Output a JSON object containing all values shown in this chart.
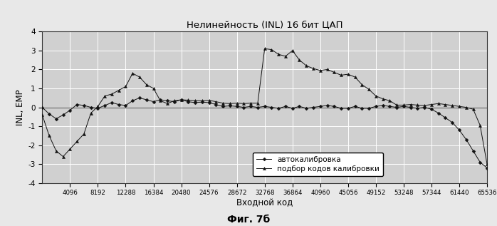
{
  "title": "Нелинейность (INL) 16 бит ЦАП",
  "xlabel": "Входной код",
  "ylabel": "INL, ЕМР",
  "figcaption": "Фиг. 7б",
  "xlim": [
    0,
    65536
  ],
  "ylim": [
    -4,
    4
  ],
  "yticks": [
    -4,
    -3,
    -2,
    -1,
    0,
    1,
    2,
    3,
    4
  ],
  "xticks": [
    4096,
    8192,
    12288,
    16384,
    20480,
    24576,
    28672,
    32768,
    36864,
    40960,
    45056,
    49152,
    53248,
    57344,
    61440,
    65536
  ],
  "xtick_labels": [
    "4096",
    "8192",
    "12288",
    "16384",
    "20480",
    "24576",
    "28672",
    "32768",
    "36864",
    "40960",
    "45056",
    "49152",
    "53248",
    "57344",
    "61440",
    "65536"
  ],
  "legend_autocalib": "автокалибровка",
  "legend_selection": "подбор кодов калибровки",
  "bg_color": "#d0d0d0",
  "line_color": "#111111",
  "grid_color": "#ffffff",
  "autocalib_x": [
    0,
    1024,
    2048,
    3072,
    4096,
    5120,
    6144,
    7168,
    8192,
    9216,
    10240,
    11264,
    12288,
    13312,
    14336,
    15360,
    16384,
    17408,
    18432,
    19456,
    20480,
    21504,
    22528,
    23552,
    24576,
    25600,
    26624,
    27648,
    28672,
    29696,
    30720,
    31744,
    32768,
    33792,
    34816,
    35840,
    36864,
    37888,
    38912,
    39936,
    40960,
    41984,
    43008,
    44032,
    45056,
    46080,
    47104,
    48128,
    49152,
    50176,
    51200,
    52224,
    53248,
    54272,
    55296,
    56320,
    57344,
    58368,
    59392,
    60416,
    61440,
    62464,
    63488,
    64512,
    65536
  ],
  "autocalib_y": [
    0.0,
    -0.35,
    -0.6,
    -0.4,
    -0.15,
    0.15,
    0.1,
    0.0,
    -0.05,
    0.1,
    0.25,
    0.15,
    0.1,
    0.35,
    0.5,
    0.4,
    0.3,
    0.4,
    0.35,
    0.3,
    0.4,
    0.3,
    0.25,
    0.28,
    0.25,
    0.15,
    0.05,
    0.08,
    0.05,
    0.0,
    0.05,
    0.0,
    0.05,
    0.0,
    -0.05,
    0.05,
    -0.05,
    0.05,
    -0.05,
    0.0,
    0.05,
    0.1,
    0.05,
    -0.05,
    -0.05,
    0.05,
    -0.05,
    -0.05,
    0.05,
    0.1,
    0.05,
    0.0,
    0.05,
    0.0,
    -0.05,
    0.0,
    -0.1,
    -0.3,
    -0.55,
    -0.8,
    -1.2,
    -1.7,
    -2.3,
    -2.9,
    -3.2
  ],
  "selection_x": [
    0,
    1024,
    2048,
    3072,
    4096,
    5120,
    6144,
    7168,
    8192,
    9216,
    10240,
    11264,
    12288,
    13312,
    14336,
    15360,
    16384,
    17408,
    18432,
    19456,
    20480,
    21504,
    22528,
    23552,
    24576,
    25600,
    26624,
    27648,
    28672,
    29696,
    30720,
    31744,
    32768,
    33792,
    34816,
    35840,
    36864,
    37888,
    38912,
    39936,
    40960,
    41984,
    43008,
    44032,
    45056,
    46080,
    47104,
    48128,
    49152,
    50176,
    51200,
    52224,
    53248,
    54272,
    55296,
    56320,
    57344,
    58368,
    59392,
    60416,
    61440,
    62464,
    63488,
    64512,
    65536
  ],
  "selection_y": [
    -0.4,
    -1.5,
    -2.3,
    -2.6,
    -2.2,
    -1.8,
    -1.4,
    -0.3,
    0.05,
    0.6,
    0.7,
    0.9,
    1.1,
    1.8,
    1.6,
    1.2,
    1.0,
    0.35,
    0.2,
    0.35,
    0.4,
    0.38,
    0.36,
    0.35,
    0.37,
    0.3,
    0.22,
    0.2,
    0.22,
    0.2,
    0.22,
    0.22,
    3.1,
    3.05,
    2.8,
    2.7,
    3.0,
    2.5,
    2.2,
    2.05,
    1.95,
    2.0,
    1.85,
    1.7,
    1.75,
    1.6,
    1.2,
    0.95,
    0.6,
    0.45,
    0.35,
    0.12,
    0.12,
    0.15,
    0.12,
    0.1,
    0.15,
    0.2,
    0.15,
    0.1,
    0.05,
    0.0,
    -0.1,
    -0.95,
    -3.0
  ]
}
